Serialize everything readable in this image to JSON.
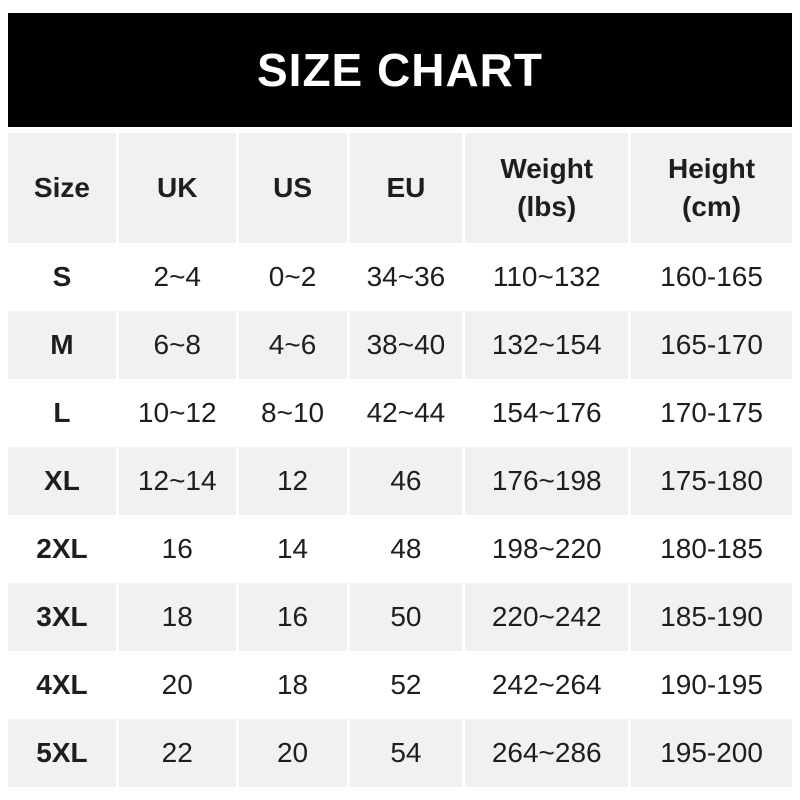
{
  "title": "SIZE CHART",
  "colors": {
    "page_bg": "#ffffff",
    "banner_bg": "#010101",
    "alt_row_bg": "#f1f1f1",
    "text_dark": "#1e1e20"
  },
  "chart_data": {
    "type": "table",
    "title": "SIZE CHART",
    "columns": [
      "Size",
      "UK",
      "US",
      "EU",
      "Weight (lbs)",
      "Height (cm)"
    ],
    "header_lines": [
      [
        "Size"
      ],
      [
        "UK"
      ],
      [
        "US"
      ],
      [
        "EU"
      ],
      [
        "Weight",
        "(lbs)"
      ],
      [
        "Height",
        "(cm)"
      ]
    ],
    "column_keys": [
      "size",
      "uk",
      "us",
      "eu",
      "weight",
      "height"
    ],
    "rows": [
      [
        "S",
        "2~4",
        "0~2",
        "34~36",
        "110~132",
        "160-165"
      ],
      [
        "M",
        "6~8",
        "4~6",
        "38~40",
        "132~154",
        "165-170"
      ],
      [
        "L",
        "10~12",
        "8~10",
        "42~44",
        "154~176",
        "170-175"
      ],
      [
        "XL",
        "12~14",
        "12",
        "46",
        "176~198",
        "175-180"
      ],
      [
        "2XL",
        "16",
        "14",
        "48",
        "198~220",
        "180-185"
      ],
      [
        "3XL",
        "18",
        "16",
        "50",
        "220~242",
        "185-190"
      ],
      [
        "4XL",
        "20",
        "18",
        "52",
        "242~264",
        "190-195"
      ],
      [
        "5XL",
        "22",
        "20",
        "54",
        "264~286",
        "195-200"
      ]
    ],
    "layout": {
      "row_alternation": "white-then-gray",
      "header_background": "gray",
      "column_separator": "white-3px"
    }
  }
}
